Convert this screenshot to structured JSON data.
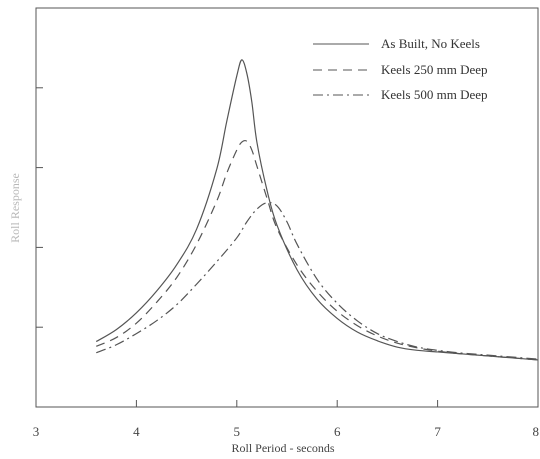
{
  "chart_data": {
    "type": "line",
    "title": "",
    "xlabel": "Roll Period - seconds",
    "ylabel": "Roll Response",
    "xlim": [
      3,
      8
    ],
    "xticks": [
      "3",
      "4",
      "5",
      "6",
      "7",
      "8"
    ],
    "y_tick_values": [
      1,
      2,
      3,
      4
    ],
    "ylim": [
      0,
      5
    ],
    "grid": false,
    "legend_position": "top-right",
    "series": [
      {
        "name": "As Built, No Keels",
        "style": "solid",
        "color": "#555555",
        "x": [
          3.6,
          3.8,
          4.0,
          4.2,
          4.4,
          4.6,
          4.8,
          4.9,
          5.0,
          5.05,
          5.1,
          5.15,
          5.2,
          5.3,
          5.4,
          5.6,
          5.8,
          6.0,
          6.2,
          6.4,
          6.6,
          6.8,
          7.0,
          7.2,
          7.4,
          7.6,
          7.8,
          8.0
        ],
        "y": [
          0.82,
          0.97,
          1.18,
          1.45,
          1.78,
          2.23,
          2.98,
          3.58,
          4.15,
          4.35,
          4.18,
          3.82,
          3.32,
          2.72,
          2.28,
          1.72,
          1.35,
          1.11,
          0.94,
          0.83,
          0.75,
          0.71,
          0.69,
          0.67,
          0.65,
          0.63,
          0.61,
          0.59
        ]
      },
      {
        "name": "Keels 250 mm Deep",
        "style": "dashed",
        "color": "#555555",
        "x": [
          3.6,
          3.8,
          4.0,
          4.2,
          4.4,
          4.6,
          4.8,
          4.9,
          5.0,
          5.05,
          5.1,
          5.15,
          5.2,
          5.3,
          5.4,
          5.6,
          5.8,
          6.0,
          6.2,
          6.4,
          6.6,
          6.8,
          7.0,
          7.2,
          7.4,
          7.6,
          7.8,
          8.0
        ],
        "y": [
          0.76,
          0.87,
          1.05,
          1.31,
          1.62,
          2.04,
          2.58,
          2.93,
          3.22,
          3.32,
          3.33,
          3.22,
          3.02,
          2.62,
          2.24,
          1.78,
          1.45,
          1.2,
          1.02,
          0.89,
          0.8,
          0.74,
          0.7,
          0.67,
          0.65,
          0.63,
          0.61,
          0.59
        ]
      },
      {
        "name": "Keels 500 mm Deep",
        "style": "dashdot",
        "color": "#555555",
        "x": [
          3.6,
          3.8,
          4.0,
          4.2,
          4.4,
          4.6,
          4.8,
          5.0,
          5.1,
          5.2,
          5.3,
          5.4,
          5.5,
          5.6,
          5.8,
          6.0,
          6.2,
          6.4,
          6.6,
          6.8,
          7.0,
          7.2,
          7.4,
          7.6,
          7.8,
          8.0
        ],
        "y": [
          0.68,
          0.78,
          0.92,
          1.08,
          1.28,
          1.54,
          1.82,
          2.12,
          2.32,
          2.48,
          2.56,
          2.52,
          2.32,
          2.04,
          1.6,
          1.3,
          1.08,
          0.92,
          0.82,
          0.75,
          0.71,
          0.68,
          0.66,
          0.64,
          0.62,
          0.6
        ]
      }
    ]
  }
}
